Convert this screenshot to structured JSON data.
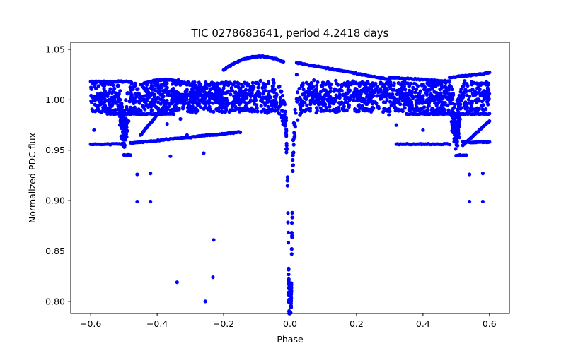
{
  "chart_data": {
    "type": "scatter",
    "title": "TIC 0278683641, period 4.2418 days",
    "xlabel": "Phase",
    "ylabel": "Normalized PDC flux",
    "xlim": [
      -0.66,
      0.66
    ],
    "ylim": [
      0.788,
      1.057
    ],
    "grid": false,
    "x_ticks": [
      -0.6,
      -0.4,
      -0.2,
      0.0,
      0.2,
      0.4,
      0.6
    ],
    "x_tick_labels": [
      "−0.6",
      "−0.4",
      "−0.2",
      "0.0",
      "0.2",
      "0.4",
      "0.6"
    ],
    "y_ticks": [
      0.8,
      0.85,
      0.9,
      0.95,
      1.0,
      1.05
    ],
    "y_tick_labels": [
      "0.80",
      "0.85",
      "0.90",
      "0.95",
      "1.00",
      "1.05"
    ],
    "marker_color": "#0000ff",
    "series": [
      {
        "name": "flux",
        "summary": "Phase-folded light curve: dense band near 1.00 across all phases, deep primary eclipse at phase 0.0 reaching ~0.795, shallower dips near ±0.5, several arcing tracks up to ~1.043 and down to ~0.955, plus scattered outliers.",
        "outliers": [
          [
            -0.59,
            0.97
          ],
          [
            -0.46,
            0.926
          ],
          [
            -0.46,
            0.899
          ],
          [
            -0.42,
            0.927
          ],
          [
            -0.42,
            0.899
          ],
          [
            -0.36,
            0.944
          ],
          [
            -0.34,
            0.819
          ],
          [
            -0.37,
            0.976
          ],
          [
            -0.33,
            0.981
          ],
          [
            -0.31,
            0.965
          ],
          [
            -0.26,
            0.947
          ],
          [
            -0.255,
            0.8
          ],
          [
            -0.23,
            0.861
          ],
          [
            -0.232,
            0.824
          ],
          [
            -0.39,
            0.989
          ],
          [
            0.32,
            0.975
          ],
          [
            0.4,
            0.97
          ],
          [
            0.54,
            0.926
          ],
          [
            0.54,
            0.899
          ],
          [
            0.58,
            0.927
          ],
          [
            0.58,
            0.899
          ],
          [
            0.02,
            1.025
          ]
        ]
      }
    ]
  }
}
